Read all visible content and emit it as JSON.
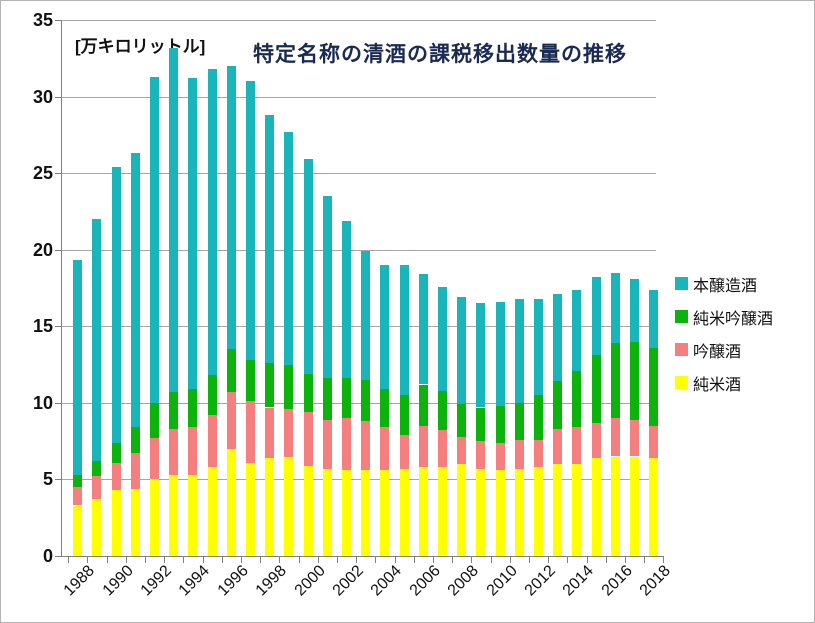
{
  "title": "特定名称の清酒の課税移出数量の推移",
  "unit_label": "[万キロリットル]",
  "colors": {
    "honjozo": "#1ab5ba",
    "junmai_ginjo": "#0db30d",
    "ginjo": "#f57e7e",
    "junmai": "#ffff00",
    "title_text": "#1a2a52",
    "gridline": "#a6a6a6",
    "axis": "#808080"
  },
  "legend": [
    {
      "id": "honjozo",
      "label": "本醸造酒",
      "color": "#1ab5ba"
    },
    {
      "id": "junmai-ginjo",
      "label": "純米吟醸酒",
      "color": "#0db30d"
    },
    {
      "id": "ginjo",
      "label": "吟醸酒",
      "color": "#f57e7e"
    },
    {
      "id": "junmai",
      "label": "純米酒",
      "color": "#ffff00"
    }
  ],
  "chart_data": {
    "type": "bar",
    "stacked": true,
    "title": "特定名称の清酒の課税移出数量の推移",
    "ylabel": "[万キロリットル]",
    "ylim": [
      0,
      35
    ],
    "yticks": [
      0,
      5,
      10,
      15,
      20,
      25,
      30,
      35
    ],
    "grid": true,
    "legend_position": "right",
    "categories": [
      1988,
      1989,
      1990,
      1991,
      1992,
      1993,
      1994,
      1995,
      1996,
      1997,
      1998,
      1999,
      2000,
      2001,
      2002,
      2003,
      2004,
      2005,
      2006,
      2007,
      2008,
      2009,
      2010,
      2011,
      2012,
      2013,
      2014,
      2015,
      2016,
      2017,
      2018
    ],
    "x_tick_labels": [
      "1988",
      "1990",
      "1992",
      "1994",
      "1996",
      "1998",
      "2000",
      "2002",
      "2004",
      "2006",
      "2008",
      "2010",
      "2012",
      "2014",
      "2016",
      "2018"
    ],
    "series": [
      {
        "id": "junmai",
        "name": "純米酒",
        "color": "#ffff00",
        "values": [
          3.3,
          3.7,
          4.3,
          4.4,
          5.0,
          5.3,
          5.3,
          5.8,
          7.0,
          6.1,
          6.4,
          6.5,
          5.9,
          5.7,
          5.6,
          5.6,
          5.6,
          5.7,
          5.8,
          5.8,
          6.0,
          5.7,
          5.6,
          5.7,
          5.8,
          6.0,
          6.0,
          6.4,
          6.5,
          6.5,
          6.4
        ]
      },
      {
        "id": "ginjo",
        "name": "吟醸酒",
        "color": "#f57e7e",
        "values": [
          1.2,
          1.5,
          1.8,
          2.3,
          2.7,
          3.0,
          3.1,
          3.4,
          3.7,
          4.0,
          3.3,
          3.1,
          3.5,
          3.2,
          3.4,
          3.2,
          2.8,
          2.2,
          2.7,
          2.4,
          1.8,
          1.8,
          1.8,
          1.9,
          1.8,
          2.3,
          2.4,
          2.3,
          2.5,
          2.4,
          2.1
        ]
      },
      {
        "id": "junmai-ginjo",
        "name": "純米吟醸酒",
        "color": "#0db30d",
        "values": [
          0.8,
          1.0,
          1.3,
          1.7,
          2.3,
          2.4,
          2.5,
          2.6,
          2.8,
          2.7,
          2.9,
          2.9,
          2.5,
          2.7,
          2.6,
          2.7,
          2.5,
          2.6,
          2.7,
          2.6,
          2.1,
          2.2,
          2.4,
          2.4,
          2.9,
          3.1,
          3.7,
          4.4,
          4.9,
          5.1,
          5.1
        ]
      },
      {
        "id": "honjozo",
        "name": "本醸造酒",
        "color": "#1ab5ba",
        "values": [
          14.0,
          15.8,
          18.0,
          17.9,
          21.3,
          22.5,
          20.3,
          20.0,
          18.5,
          18.2,
          16.2,
          15.2,
          14.0,
          11.9,
          10.3,
          8.4,
          8.1,
          8.5,
          7.2,
          6.8,
          7.0,
          6.8,
          6.8,
          6.8,
          6.3,
          5.7,
          5.3,
          5.1,
          4.6,
          4.1,
          3.8
        ]
      }
    ]
  }
}
